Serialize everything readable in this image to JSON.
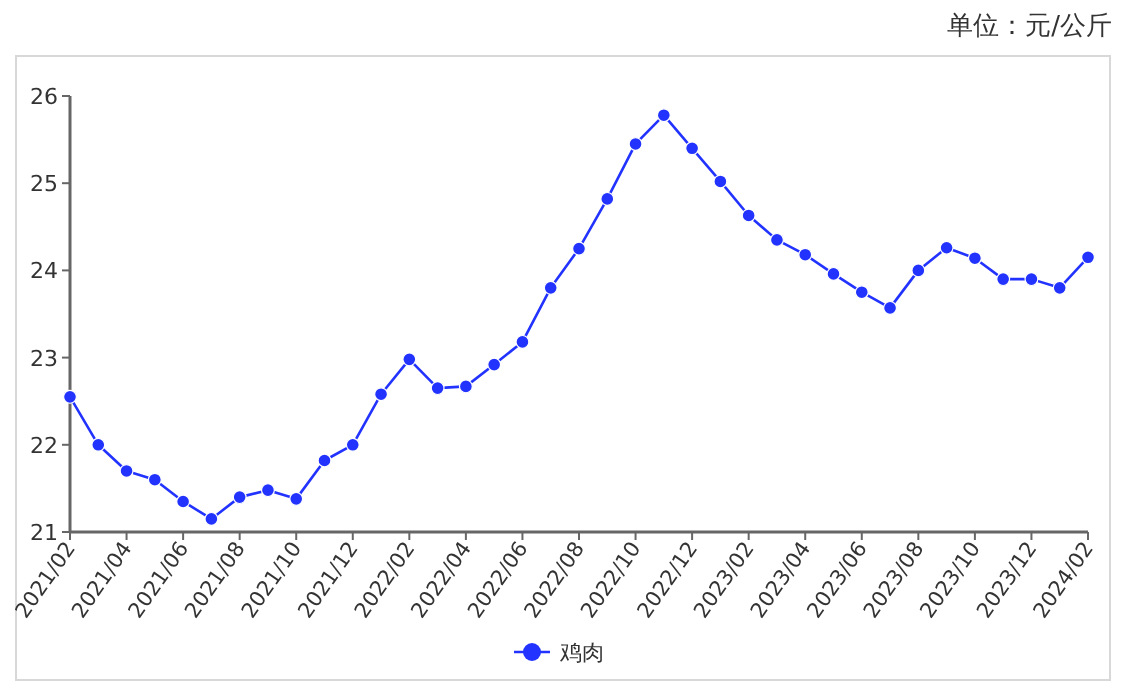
{
  "chart_data": {
    "type": "line",
    "annotations": [
      "单位：元/公斤"
    ],
    "categories": [
      "2021/02",
      null,
      "2021/04",
      null,
      "2021/06",
      null,
      "2021/08",
      null,
      "2021/10",
      null,
      "2021/12",
      null,
      "2022/02",
      null,
      "2022/04",
      null,
      "2022/06",
      null,
      "2022/08",
      null,
      "2022/10",
      null,
      "2022/12",
      null,
      "2023/02",
      null,
      "2023/04",
      null,
      "2023/06",
      null,
      "2023/08",
      null,
      "2023/10",
      null,
      "2023/12",
      null,
      "2024/02"
    ],
    "series": [
      {
        "name": "鸡肉",
        "color": "#2233ff",
        "values": [
          22.55,
          22.0,
          21.7,
          21.6,
          21.35,
          21.15,
          21.4,
          21.48,
          21.38,
          21.82,
          22.0,
          22.58,
          22.98,
          22.65,
          22.67,
          22.92,
          23.18,
          23.8,
          24.25,
          24.82,
          25.45,
          25.78,
          25.4,
          25.02,
          24.63,
          24.35,
          24.18,
          23.96,
          23.75,
          23.57,
          24.0,
          24.26,
          24.14,
          23.9,
          23.9,
          23.8,
          24.15
        ]
      }
    ],
    "ylim": [
      21,
      26
    ],
    "yticks": [
      21,
      22,
      23,
      24,
      25,
      26
    ],
    "legend": "bottom",
    "marker": "circle",
    "line_style": "solid",
    "grid": false
  }
}
